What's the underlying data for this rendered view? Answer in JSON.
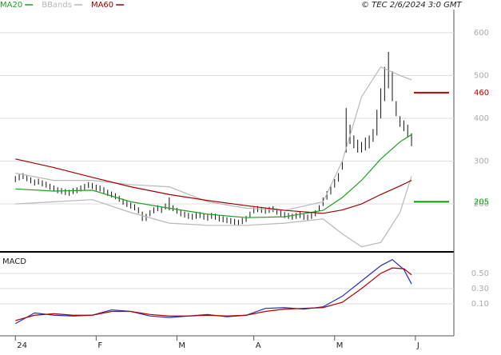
{
  "chart_data": [
    {
      "type": "ohlc",
      "source": "© TEC 2/6/2024 3:0 GMT",
      "xlim": [
        -4,
        114
      ],
      "ylim": [
        88,
        654
      ],
      "yticks": [
        200,
        300,
        400,
        500,
        600
      ],
      "grid": true,
      "bar_color": "#111111",
      "high": [
        265,
        269,
        272,
        267,
        262,
        257,
        259,
        255,
        252,
        247,
        243,
        239,
        237,
        235,
        233,
        237,
        239,
        243,
        247,
        251,
        249,
        245,
        243,
        239,
        233,
        229,
        225,
        219,
        212,
        207,
        203,
        199,
        192,
        182,
        177,
        185,
        192,
        197,
        193,
        201,
        215,
        197,
        191,
        185,
        182,
        179,
        177,
        179,
        181,
        177,
        175,
        179,
        177,
        173,
        171,
        169,
        167,
        165,
        163,
        167,
        172,
        182,
        192,
        195,
        193,
        191,
        193,
        195,
        189,
        185,
        181,
        179,
        177,
        179,
        181,
        177,
        175,
        179,
        185,
        197,
        215,
        230,
        242,
        258,
        272,
        300,
        424,
        385,
        360,
        350,
        345,
        355,
        360,
        375,
        420,
        470,
        520,
        555,
        510,
        440,
        405,
        395,
        385,
        365
      ],
      "low": [
        251,
        255,
        258,
        253,
        248,
        243,
        245,
        241,
        238,
        233,
        229,
        225,
        223,
        221,
        219,
        223,
        225,
        229,
        233,
        237,
        235,
        231,
        229,
        225,
        219,
        215,
        211,
        205,
        198,
        193,
        189,
        185,
        178,
        160,
        160,
        171,
        178,
        183,
        179,
        187,
        185,
        183,
        177,
        171,
        168,
        165,
        163,
        165,
        167,
        163,
        161,
        165,
        163,
        159,
        157,
        155,
        153,
        151,
        149,
        153,
        158,
        168,
        178,
        181,
        179,
        177,
        179,
        181,
        175,
        171,
        167,
        165,
        163,
        165,
        167,
        163,
        161,
        165,
        171,
        183,
        195,
        210,
        222,
        238,
        252,
        280,
        320,
        340,
        330,
        320,
        320,
        325,
        330,
        345,
        360,
        400,
        440,
        470,
        440,
        405,
        380,
        370,
        355,
        335
      ],
      "series": [
        {
          "name": "MA20",
          "color": "#1f9e1f",
          "x": [
            0,
            10,
            20,
            30,
            40,
            50,
            60,
            70,
            80,
            85,
            90,
            95,
            100,
            103
          ],
          "values": [
            235,
            230,
            232,
            205,
            190,
            176,
            168,
            170,
            185,
            215,
            255,
            305,
            345,
            362
          ]
        },
        {
          "name": "BBands",
          "color": "#b8b8b8",
          "x": [
            0,
            10,
            20,
            30,
            40,
            50,
            60,
            70,
            80,
            85,
            90,
            95,
            100,
            103
          ],
          "values": [
            272,
            255,
            255,
            245,
            240,
            205,
            190,
            185,
            205,
            300,
            450,
            520,
            500,
            490
          ],
          "lower": [
            200,
            205,
            210,
            180,
            155,
            150,
            150,
            155,
            165,
            130,
            100,
            110,
            180,
            265
          ]
        },
        {
          "name": "MA60",
          "color": "#a00000",
          "x": [
            0,
            10,
            20,
            30,
            40,
            50,
            60,
            70,
            80,
            85,
            90,
            95,
            100,
            103
          ],
          "values": [
            305,
            285,
            262,
            240,
            222,
            208,
            196,
            185,
            178,
            186,
            200,
            222,
            242,
            255
          ]
        }
      ],
      "levels": [
        460,
        205
      ],
      "level_colors": [
        "#c00000",
        "#00a000"
      ]
    },
    {
      "type": "line",
      "title": "MACD",
      "xlim": [
        -4,
        114
      ],
      "ylim": [
        -0.32,
        0.75
      ],
      "yticks": [
        {
          "value": 0.5,
          "label": "0.50"
        },
        {
          "value": 0.3,
          "label": "0.30"
        },
        {
          "value": 0.1,
          "label": "0.10"
        }
      ],
      "grid": true,
      "xticks": [
        {
          "value": 0,
          "label": "24"
        },
        {
          "value": 21,
          "label": "F"
        },
        {
          "value": 42,
          "label": "M"
        },
        {
          "value": 62,
          "label": "A"
        },
        {
          "value": 83,
          "label": "M"
        },
        {
          "value": 104,
          "label": "J"
        }
      ],
      "series": [
        {
          "color": "#2030c0",
          "x": [
            0,
            5,
            10,
            15,
            20,
            25,
            30,
            35,
            40,
            45,
            50,
            55,
            60,
            65,
            70,
            75,
            80,
            85,
            90,
            95,
            98,
            101,
            103
          ],
          "values": [
            -0.16,
            -0.02,
            -0.05,
            -0.06,
            -0.05,
            0.02,
            0.0,
            -0.06,
            -0.08,
            -0.06,
            -0.04,
            -0.07,
            -0.05,
            0.04,
            0.05,
            0.03,
            0.06,
            0.2,
            0.4,
            0.6,
            0.68,
            0.55,
            0.36
          ]
        },
        {
          "color": "#b00000",
          "x": [
            0,
            5,
            10,
            15,
            20,
            25,
            30,
            35,
            40,
            45,
            50,
            55,
            60,
            65,
            70,
            75,
            80,
            85,
            90,
            95,
            98,
            101,
            103
          ],
          "values": [
            -0.12,
            -0.05,
            -0.03,
            -0.05,
            -0.05,
            0.0,
            0.0,
            -0.04,
            -0.06,
            -0.06,
            -0.05,
            -0.06,
            -0.05,
            0.0,
            0.03,
            0.04,
            0.05,
            0.12,
            0.3,
            0.5,
            0.57,
            0.56,
            0.48
          ]
        }
      ]
    }
  ]
}
